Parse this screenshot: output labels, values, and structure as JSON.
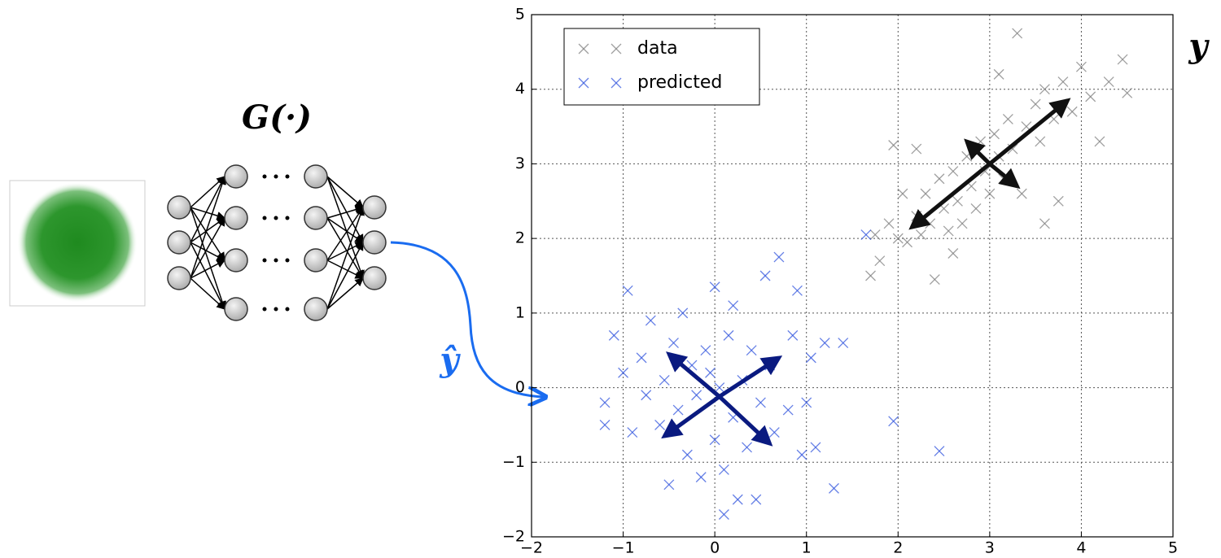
{
  "chart_data": {
    "type": "scatter",
    "annotations": {
      "generator": "G(·)",
      "prediction": "ŷ",
      "target": "y"
    },
    "xlim": [
      -2,
      5
    ],
    "ylim": [
      -2,
      5
    ],
    "xticks": [
      {
        "value": -2,
        "label": "−2"
      },
      {
        "value": -1,
        "label": "−1"
      },
      0,
      1,
      2,
      3,
      4,
      5
    ],
    "yticks": [
      {
        "value": -2,
        "label": "−2"
      },
      {
        "value": -1,
        "label": "−1"
      },
      0,
      1,
      2,
      3,
      4,
      5
    ],
    "grid": true,
    "legend": "upper left",
    "series": [
      {
        "name": "data",
        "color": "#808080",
        "x": [
          1.7,
          1.75,
          1.8,
          1.9,
          2.0,
          2.05,
          2.1,
          2.2,
          2.25,
          2.3,
          2.35,
          2.4,
          2.45,
          2.5,
          2.55,
          2.6,
          2.65,
          2.7,
          2.75,
          2.8,
          2.85,
          2.9,
          2.95,
          3.0,
          3.05,
          3.1,
          3.15,
          3.2,
          3.25,
          3.3,
          3.35,
          3.4,
          3.5,
          3.55,
          3.6,
          3.7,
          3.75,
          3.8,
          3.9,
          4.0,
          4.1,
          4.2,
          4.3,
          4.45,
          4.5,
          1.95,
          2.6,
          3.1,
          2.2,
          3.6
        ],
        "values": [
          1.5,
          2.05,
          1.7,
          2.2,
          2.0,
          2.6,
          1.95,
          2.3,
          2.05,
          2.6,
          2.2,
          1.45,
          2.8,
          2.4,
          2.1,
          2.9,
          2.5,
          2.2,
          3.1,
          2.7,
          2.4,
          3.3,
          2.9,
          2.6,
          3.4,
          3.1,
          2.8,
          3.6,
          3.2,
          4.75,
          2.6,
          3.5,
          3.8,
          3.3,
          4.0,
          3.6,
          2.5,
          4.1,
          3.7,
          4.3,
          3.9,
          3.3,
          4.1,
          4.4,
          3.95,
          3.25,
          1.8,
          4.2,
          3.2,
          2.2
        ]
      },
      {
        "name": "predicted",
        "color": "#3355dd",
        "x": [
          -1.2,
          -1.2,
          -1.1,
          -1.0,
          -0.95,
          -0.9,
          -0.8,
          -0.75,
          -0.7,
          -0.6,
          -0.55,
          -0.5,
          -0.45,
          -0.4,
          -0.35,
          -0.3,
          -0.25,
          -0.2,
          -0.15,
          -0.1,
          -0.05,
          0.0,
          0.0,
          0.05,
          0.1,
          0.15,
          0.2,
          0.2,
          0.25,
          0.3,
          0.35,
          0.4,
          0.45,
          0.5,
          0.55,
          0.6,
          0.65,
          0.7,
          0.8,
          0.85,
          0.9,
          0.95,
          1.0,
          1.05,
          1.1,
          1.2,
          1.3,
          1.4,
          1.95,
          2.45,
          1.65,
          0.1
        ],
        "values": [
          -0.2,
          -0.5,
          0.7,
          0.2,
          1.3,
          -0.6,
          0.4,
          -0.1,
          0.9,
          -0.5,
          0.1,
          -1.3,
          0.6,
          -0.3,
          1.0,
          -0.9,
          0.3,
          -0.1,
          -1.2,
          0.5,
          0.2,
          1.35,
          -0.7,
          0.0,
          -1.1,
          0.7,
          -0.4,
          1.1,
          -1.5,
          0.1,
          -0.8,
          0.5,
          -1.5,
          -0.2,
          1.5,
          0.3,
          -0.6,
          1.75,
          -0.3,
          0.7,
          1.3,
          -0.9,
          -0.2,
          0.4,
          -0.8,
          0.6,
          -1.35,
          0.6,
          -0.45,
          -0.85,
          2.05,
          -1.7
        ]
      }
    ],
    "arrows": [
      {
        "color": "#111111",
        "from": [
          3.0,
          3.0
        ],
        "to": [
          3.85,
          3.85
        ]
      },
      {
        "color": "#111111",
        "from": [
          3.0,
          3.0
        ],
        "to": [
          2.15,
          2.15
        ]
      },
      {
        "color": "#111111",
        "from": [
          3.0,
          3.0
        ],
        "to": [
          2.75,
          3.3
        ]
      },
      {
        "color": "#111111",
        "from": [
          3.0,
          3.0
        ],
        "to": [
          3.3,
          2.7
        ]
      },
      {
        "color": "#0a1a80",
        "from": [
          0.05,
          -0.12
        ],
        "to": [
          -0.5,
          0.45
        ]
      },
      {
        "color": "#0a1a80",
        "from": [
          0.05,
          -0.12
        ],
        "to": [
          0.7,
          0.4
        ]
      },
      {
        "color": "#0a1a80",
        "from": [
          0.05,
          -0.12
        ],
        "to": [
          0.6,
          -0.75
        ]
      },
      {
        "color": "#0a1a80",
        "from": [
          0.05,
          -0.12
        ],
        "to": [
          -0.55,
          -0.65
        ]
      }
    ]
  }
}
